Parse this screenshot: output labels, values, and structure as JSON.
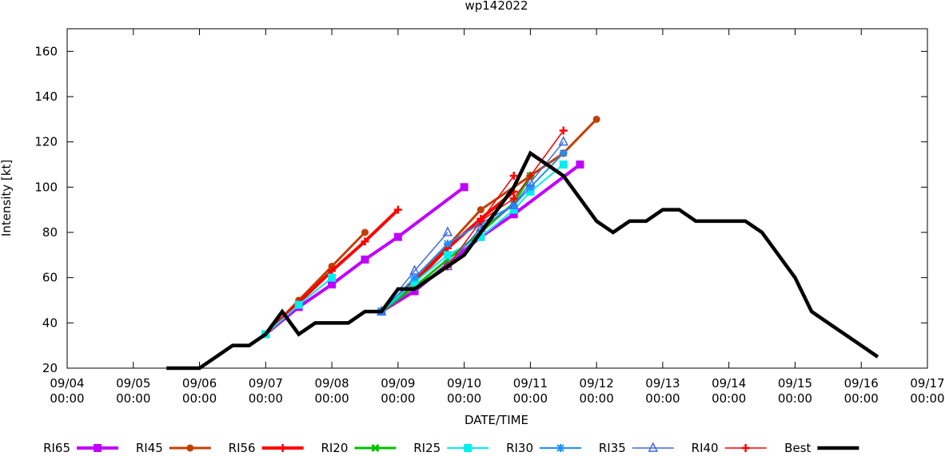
{
  "chart_data": {
    "type": "line",
    "title": "wp142022",
    "xlabel": "DATE/TIME",
    "ylabel": "Intensity [kt]",
    "xlim": [
      "09/04 00:00",
      "09/17 00:00"
    ],
    "ylim": [
      20,
      170
    ],
    "yticks": [
      20,
      40,
      60,
      80,
      100,
      120,
      140,
      160
    ],
    "xticks": [
      [
        "09/04",
        "00:00"
      ],
      [
        "09/05",
        "00:00"
      ],
      [
        "09/06",
        "00:00"
      ],
      [
        "09/07",
        "00:00"
      ],
      [
        "09/08",
        "00:00"
      ],
      [
        "09/09",
        "00:00"
      ],
      [
        "09/10",
        "00:00"
      ],
      [
        "09/11",
        "00:00"
      ],
      [
        "09/12",
        "00:00"
      ],
      [
        "09/13",
        "00:00"
      ],
      [
        "09/14",
        "00:00"
      ],
      [
        "09/15",
        "00:00"
      ],
      [
        "09/16",
        "00:00"
      ],
      [
        "09/17",
        "00:00"
      ]
    ],
    "grid": false,
    "legend_position": "bottom",
    "series": [
      {
        "name": "RI65",
        "color": "#c000ff",
        "marker": "square",
        "tracks": [
          [
            [
              "09/07 00",
              35
            ],
            [
              "09/07 12",
              47
            ],
            [
              "09/08 00",
              57
            ],
            [
              "09/08 12",
              68
            ],
            [
              "09/09 00",
              78
            ],
            [
              "09/10 00",
              100
            ]
          ],
          [
            [
              "09/08 18",
              45
            ],
            [
              "09/09 06",
              54
            ],
            [
              "09/09 18",
              66
            ],
            [
              "09/10 06",
              78
            ],
            [
              "09/10 18",
              88
            ],
            [
              "09/11 18",
              110
            ]
          ]
        ]
      },
      {
        "name": "RI45",
        "color": "#c04000",
        "marker": "circle",
        "tracks": [
          [
            [
              "09/07 00",
              35
            ],
            [
              "09/07 12",
              50
            ],
            [
              "09/08 00",
              65
            ],
            [
              "09/08 12",
              80
            ]
          ],
          [
            [
              "09/08 18",
              45
            ],
            [
              "09/09 06",
              59
            ],
            [
              "09/09 18",
              74
            ],
            [
              "09/10 06",
              90
            ],
            [
              "09/11 12",
              115
            ],
            [
              "09/12 00",
              130
            ]
          ]
        ]
      },
      {
        "name": "RI56",
        "color": "#ff0000",
        "marker": "plus",
        "tracks": [
          [
            [
              "09/07 00",
              35
            ],
            [
              "09/07 12",
              49
            ],
            [
              "09/08 00",
              63
            ],
            [
              "09/08 12",
              76
            ],
            [
              "09/09 00",
              90
            ]
          ],
          [
            [
              "09/08 18",
              45
            ],
            [
              "09/09 06",
              58
            ],
            [
              "09/09 18",
              73
            ],
            [
              "09/10 06",
              86
            ],
            [
              "09/10 18",
              98
            ]
          ]
        ]
      },
      {
        "name": "RI20",
        "color": "#00c000",
        "marker": "x",
        "tracks": [
          [
            [
              "09/08 18",
              45
            ],
            [
              "09/09 06",
              56
            ],
            [
              "09/09 18",
              68
            ],
            [
              "09/10 06",
              80
            ],
            [
              "09/10 18",
              93
            ],
            [
              "09/11 00",
              105
            ]
          ]
        ]
      },
      {
        "name": "RI25",
        "color": "#00eeee",
        "marker": "square",
        "tracks": [
          [
            [
              "09/07 00",
              35
            ],
            [
              "09/07 12",
              48
            ],
            [
              "09/08 00",
              60
            ]
          ],
          [
            [
              "09/08 18",
              45
            ],
            [
              "09/09 06",
              58
            ],
            [
              "09/09 18",
              70
            ],
            [
              "09/10 06",
              78
            ],
            [
              "09/10 18",
              90
            ],
            [
              "09/11 00",
              98
            ],
            [
              "09/11 12",
              110
            ]
          ]
        ]
      },
      {
        "name": "RI30",
        "color": "#1e90ff",
        "marker": "star",
        "tracks": [
          [
            [
              "09/08 18",
              45
            ],
            [
              "09/09 06",
              60
            ],
            [
              "09/09 18",
              75
            ],
            [
              "09/10 06",
              84
            ],
            [
              "09/10 18",
              92
            ],
            [
              "09/11 00",
              100
            ],
            [
              "09/11 12",
              115
            ]
          ]
        ]
      },
      {
        "name": "RI35",
        "color": "#4169e1",
        "marker": "triangle",
        "tracks": [
          [
            [
              "09/08 18",
              45
            ],
            [
              "09/09 06",
              63
            ],
            [
              "09/09 18",
              80
            ]
          ],
          [
            [
              "09/09 18",
              65
            ],
            [
              "09/10 06",
              82
            ],
            [
              "09/10 18",
              92
            ],
            [
              "09/11 00",
              102
            ],
            [
              "09/11 12",
              120
            ]
          ]
        ]
      },
      {
        "name": "RI40",
        "color": "#ff0000",
        "marker": "plus",
        "tracks": [
          [
            [
              "09/09 18",
              65
            ],
            [
              "09/10 06",
              85
            ],
            [
              "09/10 18",
              105
            ]
          ],
          [
            [
              "09/10 06",
              85
            ],
            [
              "09/10 18",
              95
            ],
            [
              "09/11 00",
              105
            ],
            [
              "09/11 12",
              125
            ]
          ]
        ]
      },
      {
        "name": "Best",
        "color": "#000000",
        "marker": "none",
        "tracks": [
          [
            [
              "09/05 12",
              20
            ],
            [
              "09/06 00",
              20
            ],
            [
              "09/06 06",
              25
            ],
            [
              "09/06 12",
              30
            ],
            [
              "09/06 18",
              30
            ],
            [
              "09/07 00",
              35
            ],
            [
              "09/07 06",
              45
            ],
            [
              "09/07 12",
              35
            ],
            [
              "09/07 18",
              40
            ],
            [
              "09/08 00",
              40
            ],
            [
              "09/08 06",
              40
            ],
            [
              "09/08 12",
              45
            ],
            [
              "09/08 18",
              45
            ],
            [
              "09/09 00",
              55
            ],
            [
              "09/09 06",
              55
            ],
            [
              "09/09 12",
              60
            ],
            [
              "09/09 18",
              65
            ],
            [
              "09/10 00",
              70
            ],
            [
              "09/10 06",
              80
            ],
            [
              "09/10 12",
              90
            ],
            [
              "09/10 18",
              100
            ],
            [
              "09/11 00",
              115
            ],
            [
              "09/11 06",
              110
            ],
            [
              "09/11 12",
              105
            ],
            [
              "09/11 18",
              95
            ],
            [
              "09/12 00",
              85
            ],
            [
              "09/12 06",
              80
            ],
            [
              "09/12 12",
              85
            ],
            [
              "09/12 18",
              85
            ],
            [
              "09/13 00",
              90
            ],
            [
              "09/13 06",
              90
            ],
            [
              "09/13 12",
              85
            ],
            [
              "09/13 18",
              85
            ],
            [
              "09/14 00",
              85
            ],
            [
              "09/14 06",
              85
            ],
            [
              "09/14 12",
              80
            ],
            [
              "09/14 18",
              70
            ],
            [
              "09/15 00",
              60
            ],
            [
              "09/15 06",
              45
            ],
            [
              "09/15 12",
              40
            ],
            [
              "09/15 18",
              35
            ],
            [
              "09/16 00",
              30
            ],
            [
              "09/16 06",
              25
            ]
          ]
        ]
      }
    ]
  }
}
